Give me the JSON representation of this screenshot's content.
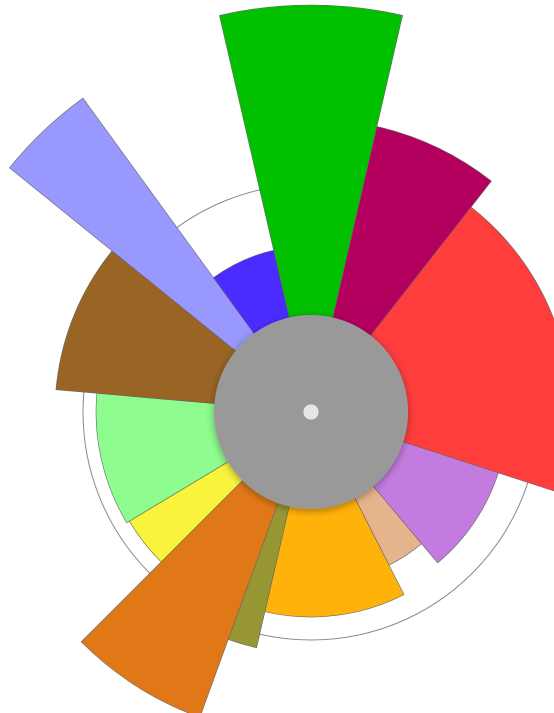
{
  "chart_data": {
    "type": "rose",
    "values": [
      26,
      25,
      70,
      32,
      13,
      40,
      7,
      25,
      14,
      36,
      34,
      15,
      23
    ],
    "radii": [
      407,
      293,
      260,
      197,
      172,
      205,
      242,
      325,
      212,
      215,
      256,
      388,
      166
    ],
    "colors": [
      "#00c000",
      "#b3005e",
      "#ff3d3d",
      "#c47be0",
      "#e6b48c",
      "#ffb20a",
      "#969633",
      "#e07818",
      "#f8f43c",
      "#8efc8e",
      "#9a6424",
      "#9898ff",
      "#4a2cff"
    ]
  }
}
